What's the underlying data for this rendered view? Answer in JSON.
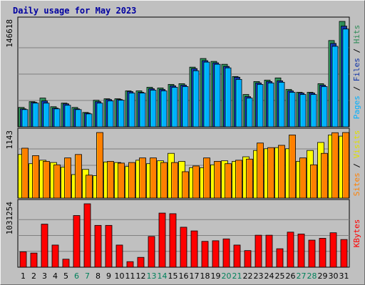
{
  "chart_data": {
    "type": "bar",
    "title": "Daily usage for May 2023",
    "categories": [
      "1",
      "2",
      "3",
      "4",
      "5",
      "6",
      "7",
      "8",
      "9",
      "10",
      "11",
      "12",
      "13",
      "14",
      "15",
      "16",
      "17",
      "18",
      "19",
      "20",
      "21",
      "22",
      "23",
      "24",
      "25",
      "26",
      "27",
      "28",
      "29",
      "30",
      "31"
    ],
    "weekend_days": [
      "6",
      "7",
      "13",
      "14",
      "20",
      "21",
      "27",
      "28"
    ],
    "panels": [
      {
        "max_label": "146618",
        "ylim": [
          0,
          146618
        ],
        "series": [
          {
            "name": "Hits",
            "color": "#2e8b57",
            "values": [
              27000,
              35000,
              40000,
              28000,
              33000,
              27000,
              20000,
              37000,
              39000,
              39000,
              50000,
              50000,
              55000,
              54000,
              59000,
              60000,
              83000,
              95000,
              91000,
              87000,
              70000,
              45000,
              63000,
              65000,
              68000,
              52000,
              48000,
              48000,
              60000,
              120000,
              146618
            ]
          },
          {
            "name": "Files",
            "color": "#1034a6",
            "values": [
              25000,
              34000,
              36000,
              26000,
              32000,
              25000,
              19000,
              35000,
              38000,
              38000,
              49000,
              48000,
              53000,
              52000,
              57000,
              58000,
              81000,
              92000,
              89000,
              84000,
              69000,
              42000,
              61000,
              63000,
              64000,
              50000,
              47000,
              47000,
              58000,
              116000,
              140000
            ]
          },
          {
            "name": "Pages",
            "color": "#00b0ff",
            "values": [
              24000,
              33000,
              33000,
              25000,
              30000,
              24000,
              18000,
              33000,
              36000,
              37000,
              47000,
              47000,
              51000,
              50000,
              55000,
              56000,
              78000,
              90000,
              87000,
              82000,
              66000,
              40000,
              59000,
              61000,
              62000,
              48000,
              45000,
              45000,
              56000,
              112000,
              136000
            ]
          }
        ]
      },
      {
        "max_label": "1143",
        "ylim": [
          0,
          1143
        ],
        "series": [
          {
            "name": "Visits",
            "color": "#ffff00",
            "values": [
              760,
              600,
              660,
              620,
              540,
              410,
              500,
              390,
              630,
              620,
              550,
              660,
              600,
              650,
              780,
              640,
              530,
              530,
              580,
              650,
              640,
              720,
              830,
              860,
              880,
              860,
              640,
              830,
              970,
              1100,
              1080
            ]
          },
          {
            "name": "Sites",
            "color": "#ff8000",
            "values": [
              870,
              740,
              640,
              580,
              700,
              760,
              400,
              1143,
              640,
              610,
              620,
              700,
              700,
              620,
              620,
              460,
              560,
              700,
              640,
              600,
              660,
              680,
              960,
              880,
              920,
              1100,
              700,
              580,
              780,
              1140,
              1143
            ]
          }
        ]
      },
      {
        "max_label": "1031254",
        "ylim": [
          0,
          1031254
        ],
        "series": [
          {
            "name": "KBytes",
            "color": "#ff0000",
            "values": [
              250000,
              230000,
              700000,
              360000,
              130000,
              840000,
              1031254,
              680000,
              680000,
              360000,
              90000,
              160000,
              500000,
              880000,
              870000,
              650000,
              590000,
              420000,
              430000,
              460000,
              360000,
              270000,
              520000,
              520000,
              300000,
              570000,
              540000,
              440000,
              470000,
              560000,
              450000
            ]
          }
        ]
      }
    ],
    "side_labels": [
      {
        "parts": [
          {
            "text": "Pages",
            "color": "#00b0ff"
          },
          {
            "text": " / ",
            "color": "#000000"
          },
          {
            "text": "Files",
            "color": "#1034a6"
          },
          {
            "text": " / ",
            "color": "#000000"
          },
          {
            "text": "Hits",
            "color": "#2e8b57"
          }
        ]
      },
      {
        "parts": [
          {
            "text": "Sites",
            "color": "#ff8000"
          },
          {
            "text": " / ",
            "color": "#000000"
          },
          {
            "text": "Visits",
            "color": "#e0e000"
          }
        ]
      },
      {
        "parts": [
          {
            "text": "KBytes",
            "color": "#ff0000"
          }
        ]
      }
    ]
  },
  "colors": {
    "title": "#0000a0",
    "plot_bg": "#c0c0c0",
    "weekday_label": "#000000",
    "weekend_label": "#00805a"
  }
}
